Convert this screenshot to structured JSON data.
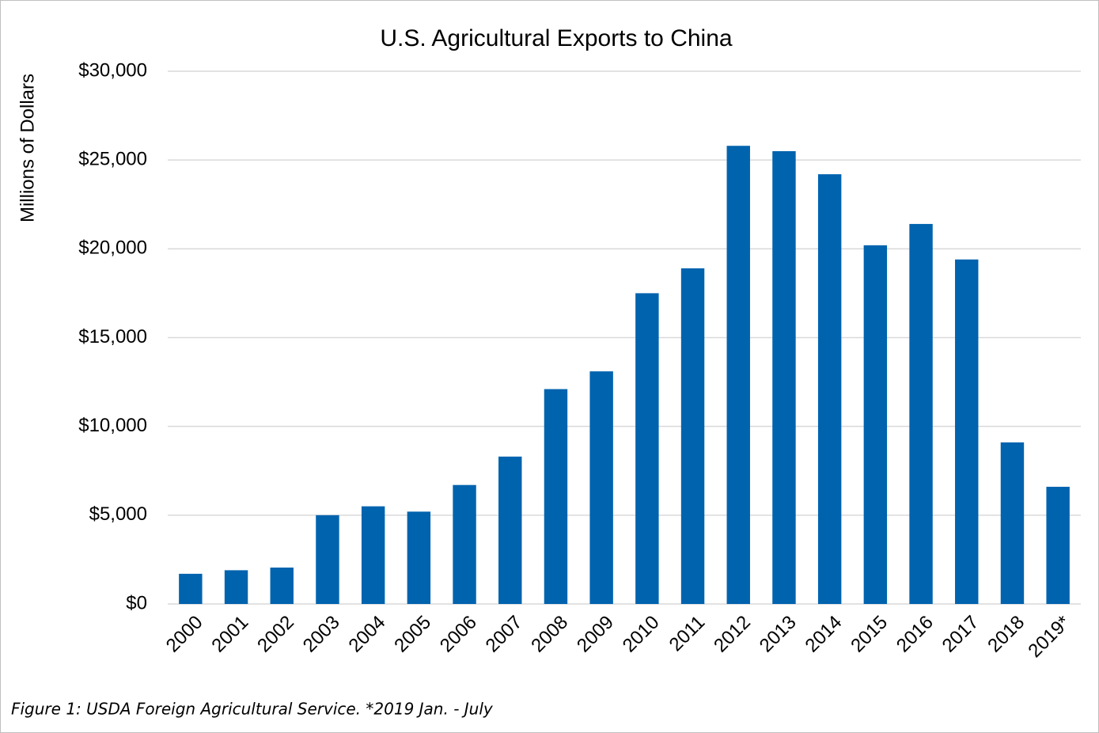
{
  "chart_data": {
    "type": "bar",
    "title": "U.S. Agricultural Exports to China",
    "y_label": "Millions of Dollars",
    "footnote": "Figure 1: USDA Foreign Agricultural Service. *2019 Jan. - July",
    "categories": [
      "2000",
      "2001",
      "2002",
      "2003",
      "2004",
      "2005",
      "2006",
      "2007",
      "2008",
      "2009",
      "2010",
      "2011",
      "2012",
      "2013",
      "2014",
      "2015",
      "2016",
      "2017",
      "2018",
      "2019*"
    ],
    "values": [
      1700,
      1900,
      2050,
      5000,
      5500,
      5200,
      6700,
      8300,
      12100,
      13100,
      17500,
      18900,
      25800,
      25500,
      24200,
      20200,
      21400,
      19400,
      9100,
      6600
    ],
    "color": "#0063ae",
    "ylim": [
      0,
      30000
    ],
    "yticks": [
      {
        "value": 0,
        "label": "$0"
      },
      {
        "value": 5000,
        "label": "$5,000"
      },
      {
        "value": 10000,
        "label": "$10,000"
      },
      {
        "value": 15000,
        "label": "$15,000"
      },
      {
        "value": 20000,
        "label": "$20,000"
      },
      {
        "value": 25000,
        "label": "$25,000"
      },
      {
        "value": 30000,
        "label": "$30,000"
      }
    ],
    "grid": true
  }
}
